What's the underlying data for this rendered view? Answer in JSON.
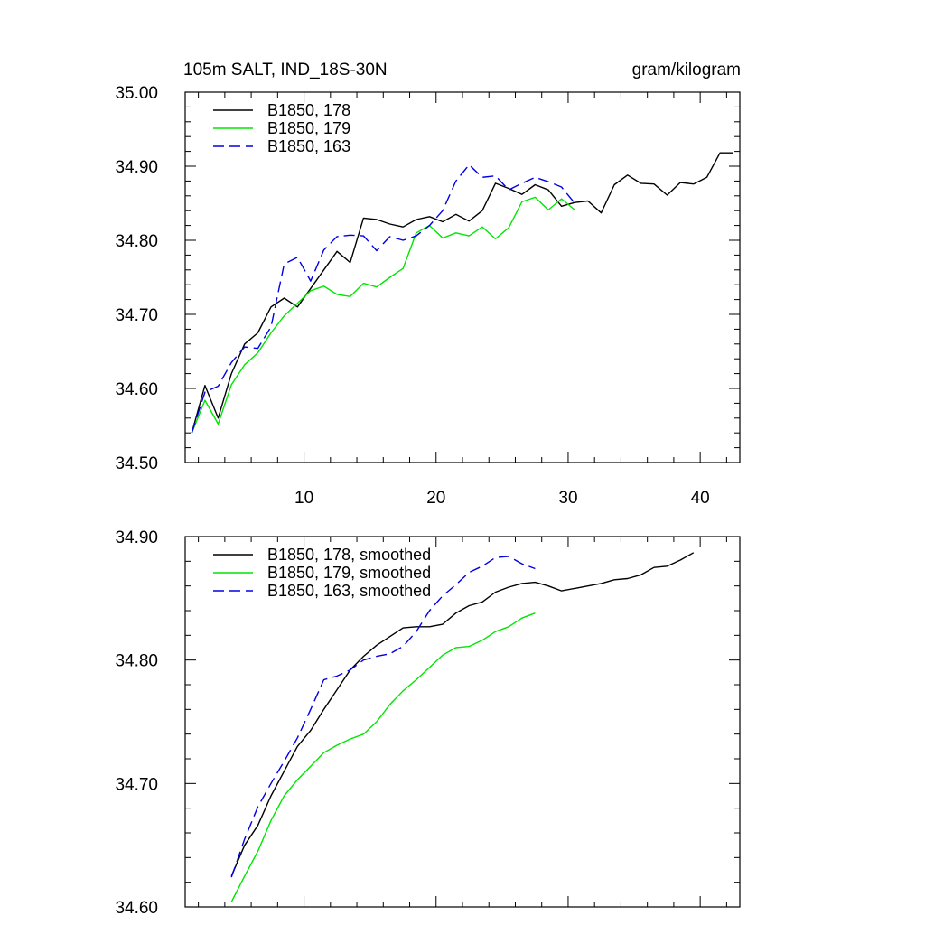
{
  "chart_data": [
    {
      "type": "line",
      "title_left": "105m SALT, IND_18S-30N",
      "title_right": "gram/kilogram",
      "xlabel": "",
      "ylabel": "",
      "xlim": [
        1,
        43
      ],
      "ylim": [
        34.5,
        35.0
      ],
      "x_ticks": [
        10,
        20,
        30,
        40
      ],
      "x_tick_labels": [
        "10",
        "20",
        "30",
        "40"
      ],
      "y_ticks": [
        34.5,
        34.6,
        34.7,
        34.8,
        34.9,
        35.0
      ],
      "y_tick_labels": [
        "34.50",
        "34.60",
        "34.70",
        "34.80",
        "34.90",
        "35.00"
      ],
      "legend_position": "top-left",
      "series": [
        {
          "name": "B1850, 178",
          "color": "#000000",
          "dash": "solid",
          "x": [
            1.5,
            2.5,
            3.5,
            4.5,
            5.5,
            6.5,
            7.5,
            8.5,
            9.5,
            10.5,
            11.5,
            12.5,
            13.5,
            14.5,
            15.5,
            16.5,
            17.5,
            18.5,
            19.5,
            20.5,
            21.5,
            22.5,
            23.5,
            24.5,
            25.5,
            26.5,
            27.5,
            28.5,
            29.5,
            30.5,
            31.5,
            32.5,
            33.5,
            34.5,
            35.5,
            36.5,
            37.5,
            38.5,
            39.5,
            40.5,
            41.5,
            42.5
          ],
          "values": [
            34.54,
            34.604,
            34.56,
            34.62,
            34.66,
            34.675,
            34.71,
            34.722,
            34.71,
            34.735,
            34.76,
            34.785,
            34.77,
            34.83,
            34.828,
            34.822,
            34.818,
            34.828,
            34.832,
            34.825,
            34.835,
            34.826,
            34.84,
            34.877,
            34.87,
            34.862,
            34.875,
            34.868,
            34.846,
            34.851,
            34.853,
            34.837,
            34.875,
            34.888,
            34.877,
            34.876,
            34.861,
            34.878,
            34.876,
            34.885,
            34.918,
            34.918
          ]
        },
        {
          "name": "B1850, 179",
          "color": "#00e600",
          "dash": "solid",
          "x": [
            1.5,
            2.5,
            3.5,
            4.5,
            5.5,
            6.5,
            7.5,
            8.5,
            9.5,
            10.5,
            11.5,
            12.5,
            13.5,
            14.5,
            15.5,
            16.5,
            17.5,
            18.5,
            19.5,
            20.5,
            21.5,
            22.5,
            23.5,
            24.5,
            25.5,
            26.5,
            27.5,
            28.5,
            29.5,
            30.5
          ],
          "values": [
            34.54,
            34.584,
            34.552,
            34.605,
            34.632,
            34.648,
            34.675,
            34.698,
            34.715,
            34.732,
            34.738,
            34.727,
            34.724,
            34.742,
            34.737,
            34.75,
            34.762,
            34.81,
            34.82,
            34.803,
            34.81,
            34.806,
            34.818,
            34.802,
            34.817,
            34.852,
            34.858,
            34.841,
            34.856,
            34.841
          ]
        },
        {
          "name": "B1850, 163",
          "color": "#0000e6",
          "dash": "dashed",
          "x": [
            1.5,
            2.5,
            3.5,
            4.5,
            5.5,
            6.5,
            7.5,
            8.5,
            9.5,
            10.5,
            11.5,
            12.5,
            13.5,
            14.5,
            15.5,
            16.5,
            17.5,
            18.5,
            19.5,
            20.5,
            21.5,
            22.5,
            23.5,
            24.5,
            25.5,
            26.5,
            27.5,
            28.5,
            29.5,
            30.5
          ],
          "values": [
            34.54,
            34.595,
            34.603,
            34.635,
            34.656,
            34.654,
            34.683,
            34.768,
            34.777,
            34.745,
            34.787,
            34.805,
            34.807,
            34.806,
            34.786,
            34.805,
            34.8,
            34.806,
            34.82,
            34.84,
            34.88,
            34.902,
            34.885,
            34.887,
            34.868,
            34.877,
            34.885,
            34.879,
            34.872,
            34.85
          ]
        }
      ]
    },
    {
      "type": "line",
      "title": "",
      "xlabel": "",
      "ylabel": "",
      "xlim": [
        1,
        43
      ],
      "ylim": [
        34.6,
        34.9
      ],
      "y_ticks": [
        34.6,
        34.7,
        34.8,
        34.9
      ],
      "y_tick_labels": [
        "34.60",
        "34.70",
        "34.80",
        "34.90"
      ],
      "legend_position": "top-left",
      "series": [
        {
          "name": "B1850, 178, smoothed",
          "color": "#000000",
          "dash": "solid",
          "x": [
            4.5,
            5.5,
            6.5,
            7.5,
            8.5,
            9.5,
            10.5,
            11.5,
            12.5,
            13.5,
            14.5,
            15.5,
            16.5,
            17.5,
            18.5,
            19.5,
            20.5,
            21.5,
            22.5,
            23.5,
            24.5,
            25.5,
            26.5,
            27.5,
            28.5,
            29.5,
            30.5,
            31.5,
            32.5,
            33.5,
            34.5,
            35.5,
            36.5,
            37.5,
            38.5,
            39.5
          ],
          "values": [
            34.625,
            34.65,
            34.666,
            34.69,
            34.71,
            34.73,
            34.743,
            34.76,
            34.776,
            34.792,
            34.803,
            34.812,
            34.819,
            34.826,
            34.827,
            34.827,
            34.829,
            34.838,
            34.844,
            34.847,
            34.855,
            34.859,
            34.862,
            34.863,
            34.86,
            34.856,
            34.858,
            34.86,
            34.862,
            34.865,
            34.866,
            34.869,
            34.875,
            34.876,
            34.881,
            34.887
          ]
        },
        {
          "name": "B1850, 179, smoothed",
          "color": "#00e600",
          "dash": "solid",
          "x": [
            4.5,
            5.5,
            6.5,
            7.5,
            8.5,
            9.5,
            10.5,
            11.5,
            12.5,
            13.5,
            14.5,
            15.5,
            16.5,
            17.5,
            18.5,
            19.5,
            20.5,
            21.5,
            22.5,
            23.5,
            24.5,
            25.5,
            26.5,
            27.5
          ],
          "values": [
            34.604,
            34.625,
            34.645,
            34.67,
            34.69,
            34.703,
            34.714,
            34.725,
            34.731,
            34.736,
            34.74,
            34.75,
            34.764,
            34.775,
            34.784,
            34.794,
            34.804,
            34.81,
            34.811,
            34.816,
            34.823,
            34.827,
            34.834,
            34.838
          ]
        },
        {
          "name": "B1850, 163, smoothed",
          "color": "#0000e6",
          "dash": "dashed",
          "x": [
            4.5,
            5.5,
            6.5,
            7.5,
            8.5,
            9.5,
            10.5,
            11.5,
            12.5,
            13.5,
            14.5,
            15.5,
            16.5,
            17.5,
            18.5,
            19.5,
            20.5,
            21.5,
            22.5,
            23.5,
            24.5,
            25.5,
            26.5,
            27.5
          ],
          "values": [
            34.624,
            34.655,
            34.681,
            34.7,
            34.718,
            34.737,
            34.76,
            34.784,
            34.787,
            34.792,
            34.8,
            34.803,
            34.805,
            34.811,
            34.823,
            34.84,
            34.852,
            34.861,
            34.871,
            34.876,
            34.883,
            34.884,
            34.878,
            34.874
          ]
        }
      ]
    }
  ]
}
